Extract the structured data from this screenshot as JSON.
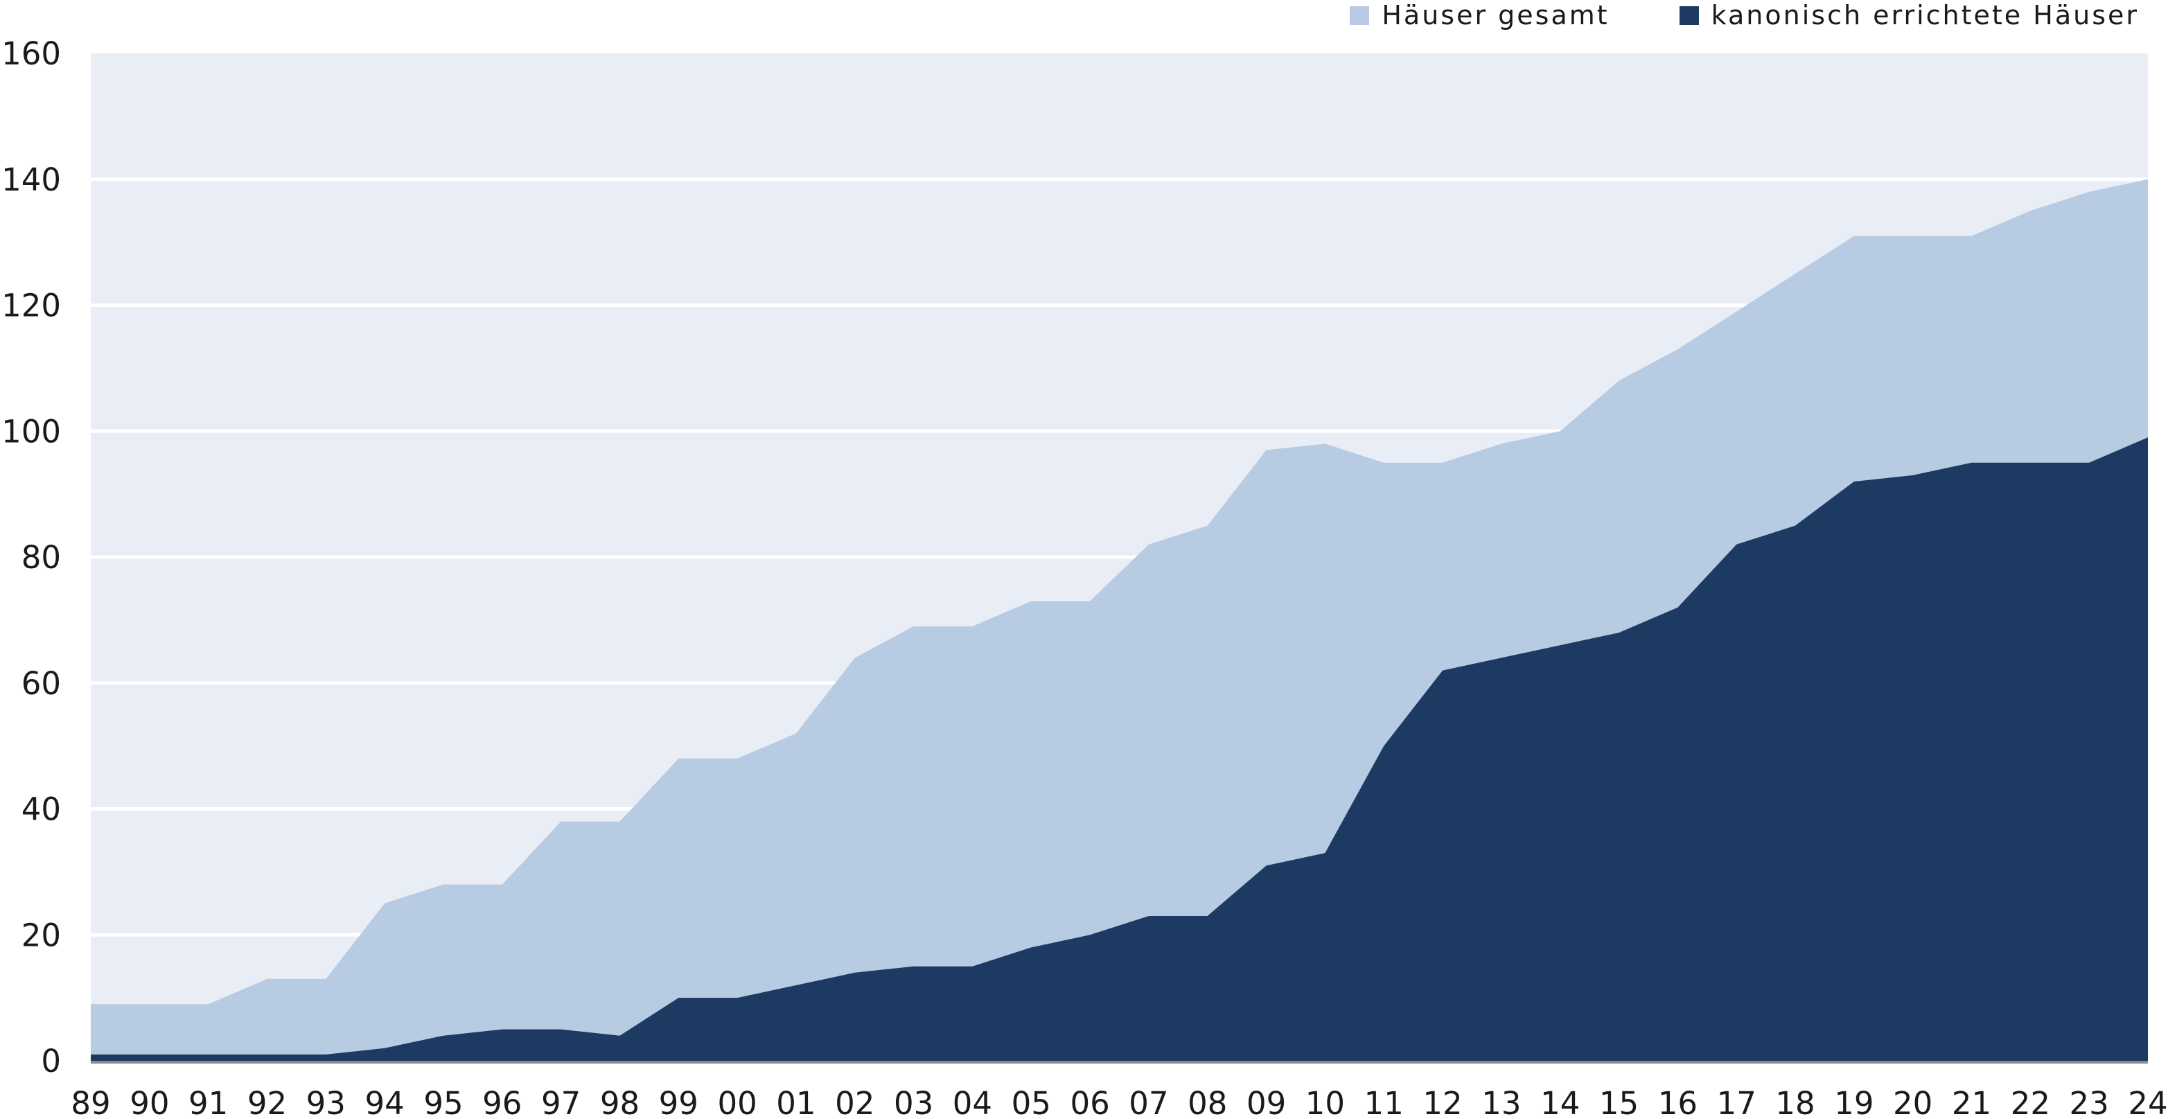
{
  "legend": {
    "items": [
      {
        "label": "Häuser gesamt",
        "color": "#B7CBE2"
      },
      {
        "label": "kanonisch errichtete Häuser",
        "color": "#1D3A63"
      }
    ]
  },
  "chart_data": {
    "type": "area",
    "title": "",
    "xlabel": "",
    "ylabel": "",
    "categories": [
      "89",
      "90",
      "91",
      "92",
      "93",
      "94",
      "95",
      "96",
      "97",
      "98",
      "99",
      "00",
      "01",
      "02",
      "03",
      "04",
      "05",
      "06",
      "07",
      "08",
      "09",
      "10",
      "11",
      "12",
      "13",
      "14",
      "15",
      "16",
      "17",
      "18",
      "19",
      "20",
      "21",
      "22",
      "23",
      "24"
    ],
    "series": [
      {
        "name": "Häuser gesamt",
        "color": "#B7CBE2",
        "values": [
          9,
          9,
          9,
          13,
          13,
          25,
          28,
          28,
          38,
          38,
          48,
          48,
          52,
          64,
          69,
          69,
          73,
          73,
          82,
          85,
          97,
          98,
          95,
          95,
          98,
          100,
          108,
          113,
          119,
          125,
          131,
          131,
          131,
          135,
          138,
          140
        ]
      },
      {
        "name": "kanonisch errichtete Häuser",
        "color": "#1D3A63",
        "values": [
          1,
          1,
          1,
          1,
          1,
          2,
          4,
          5,
          5,
          4,
          10,
          10,
          12,
          14,
          15,
          15,
          18,
          20,
          23,
          23,
          31,
          33,
          50,
          62,
          64,
          66,
          68,
          72,
          82,
          85,
          92,
          93,
          95,
          95,
          95,
          99
        ]
      }
    ],
    "ylim": [
      0,
      160
    ],
    "y_ticks": [
      0,
      20,
      40,
      60,
      80,
      100,
      120,
      140,
      160
    ],
    "grid": true,
    "legend_position": "top-right",
    "plot_bg": "#E9EDF6",
    "gridline_color": "#FFFFFF",
    "axis_line_color": "#8A8A8A",
    "text_color": "#1a1a1a"
  }
}
